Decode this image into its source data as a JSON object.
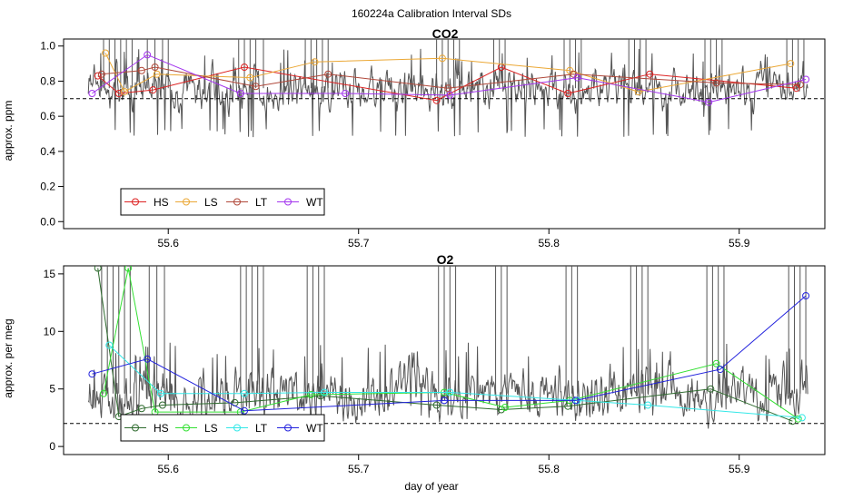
{
  "suptitle": "160224a   Calibration Interval SDs",
  "chart_data": [
    {
      "type": "line",
      "title": "CO2",
      "xlabel": "",
      "ylabel": "approx. ppm",
      "xlim": [
        55.545,
        55.945
      ],
      "ylim": [
        -0.04,
        1.04
      ],
      "xticks": [
        "55.6",
        "55.7",
        "55.8",
        "55.9"
      ],
      "yticks": [
        "0.0",
        "0.2",
        "0.4",
        "0.6",
        "0.8",
        "1.0"
      ],
      "reference_line": 0.7,
      "noise": {
        "base": 0.76,
        "amp": 0.08,
        "floor": 0.48,
        "seed": 7
      },
      "spikes": [
        55.566,
        55.569,
        55.572,
        55.575,
        55.578,
        55.581,
        55.589,
        55.593,
        55.597,
        55.6,
        55.637,
        55.64,
        55.643,
        55.646,
        55.65,
        55.672,
        55.675,
        55.678,
        55.681,
        55.684,
        55.741,
        55.744,
        55.747,
        55.75,
        55.753,
        55.771,
        55.774,
        55.777,
        55.808,
        55.811,
        55.814,
        55.817,
        55.842,
        55.845,
        55.848,
        55.851,
        55.882,
        55.885,
        55.888,
        55.891,
        55.925,
        55.928,
        55.931,
        55.934
      ],
      "legend": [
        "HS",
        "LS",
        "LT",
        "WT"
      ],
      "series": [
        {
          "name": "HS",
          "color": "#dd2222",
          "x": [
            55.563,
            55.574,
            55.592,
            55.64,
            55.741,
            55.775,
            55.81,
            55.853,
            55.93
          ],
          "y": [
            0.83,
            0.73,
            0.75,
            0.88,
            0.69,
            0.88,
            0.73,
            0.84,
            0.76
          ]
        },
        {
          "name": "LS",
          "color": "#eba836",
          "x": [
            55.567,
            55.577,
            55.594,
            55.643,
            55.677,
            55.744,
            55.811,
            55.847,
            55.927
          ],
          "y": [
            0.96,
            0.74,
            0.84,
            0.82,
            0.91,
            0.93,
            0.86,
            0.74,
            0.9
          ]
        },
        {
          "name": "LT",
          "color": "#b0483a",
          "x": [
            55.565,
            55.586,
            55.593,
            55.646,
            55.684,
            55.747,
            55.813,
            55.888,
            55.932
          ],
          "y": [
            0.84,
            0.86,
            0.88,
            0.77,
            0.84,
            0.76,
            0.84,
            0.79,
            0.78
          ]
        },
        {
          "name": "WT",
          "color": "#a335ee",
          "x": [
            55.56,
            55.589,
            55.638,
            55.693,
            55.748,
            55.815,
            55.884,
            55.935
          ],
          "y": [
            0.73,
            0.95,
            0.73,
            0.73,
            0.72,
            0.82,
            0.68,
            0.81
          ]
        }
      ]
    },
    {
      "type": "line",
      "title": "O2",
      "xlabel": "day of year",
      "ylabel": "approx. per meg",
      "xlim": [
        55.545,
        55.945
      ],
      "ylim": [
        -0.7,
        15.7
      ],
      "xticks": [
        "55.6",
        "55.7",
        "55.8",
        "55.9"
      ],
      "yticks": [
        "0",
        "5",
        "10",
        "15"
      ],
      "reference_line": 2,
      "noise": {
        "base": 4.6,
        "amp": 1.6,
        "floor": 2.6,
        "seed": 13
      },
      "spikes": [
        55.565,
        55.568,
        55.571,
        55.574,
        55.577,
        55.58,
        55.59,
        55.594,
        55.598,
        55.638,
        55.641,
        55.644,
        55.647,
        55.65,
        55.673,
        55.676,
        55.679,
        55.682,
        55.742,
        55.745,
        55.748,
        55.751,
        55.772,
        55.775,
        55.778,
        55.809,
        55.812,
        55.815,
        55.843,
        55.846,
        55.849,
        55.852,
        55.883,
        55.886,
        55.889,
        55.892,
        55.926,
        55.929,
        55.932,
        55.935
      ],
      "legend": [
        "HS",
        "LS",
        "LT",
        "WT"
      ],
      "series": [
        {
          "name": "HS",
          "color": "#2f6b2f",
          "x": [
            55.563,
            55.574,
            55.586,
            55.597,
            55.635,
            55.68,
            55.741,
            55.775,
            55.81,
            55.885,
            55.928
          ],
          "y": [
            15.5,
            2.6,
            3.3,
            3.6,
            3.8,
            4.4,
            3.6,
            3.2,
            3.5,
            5.0,
            2.2
          ]
        },
        {
          "name": "LS",
          "color": "#33e033",
          "x": [
            55.566,
            55.579,
            55.593,
            55.638,
            55.675,
            55.745,
            55.777,
            55.811,
            55.888,
            55.931
          ],
          "y": [
            4.6,
            15.5,
            3.0,
            3.0,
            4.5,
            4.7,
            3.4,
            4.0,
            7.2,
            2.4
          ]
        },
        {
          "name": "LT",
          "color": "#33e8e8",
          "x": [
            55.569,
            55.596,
            55.64,
            55.682,
            55.748,
            55.815,
            55.852,
            55.933
          ],
          "y": [
            8.8,
            4.6,
            4.6,
            4.7,
            4.7,
            4.0,
            3.6,
            2.5
          ]
        },
        {
          "name": "WT",
          "color": "#2222dd",
          "x": [
            55.56,
            55.589,
            55.64,
            55.745,
            55.814,
            55.89,
            55.935
          ],
          "y": [
            6.3,
            7.6,
            3.1,
            4.0,
            4.0,
            6.7,
            13.1
          ]
        }
      ]
    }
  ]
}
